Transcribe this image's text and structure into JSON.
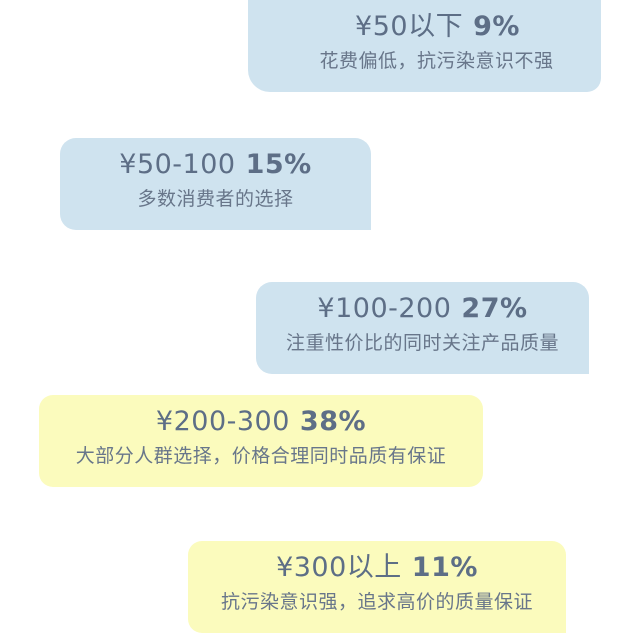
{
  "tiers": [
    {
      "price": "¥50以下",
      "percent": "9%",
      "description": "花费偏低，抗污染意识不强",
      "color": "#cfe3ef"
    },
    {
      "price": "¥50-100",
      "percent": "15%",
      "description": "多数消费者的选择",
      "color": "#cfe3ef"
    },
    {
      "price": "¥100-200",
      "percent": "27%",
      "description": "注重性价比的同时关注产品质量",
      "color": "#cfe3ef"
    },
    {
      "price": "¥200-300",
      "percent": "38%",
      "description": "大部分人群选择，价格合理同时品质有保证",
      "color": "#fbfbbd"
    },
    {
      "price": "¥300以上",
      "percent": "11%",
      "description": "抗污染意识强，追求高价的质量保证",
      "color": "#fbfbbd"
    }
  ],
  "colors": {
    "text": "#5d6e86",
    "blue_card": "#cfe3ef",
    "yellow_card": "#fbfbbd"
  }
}
